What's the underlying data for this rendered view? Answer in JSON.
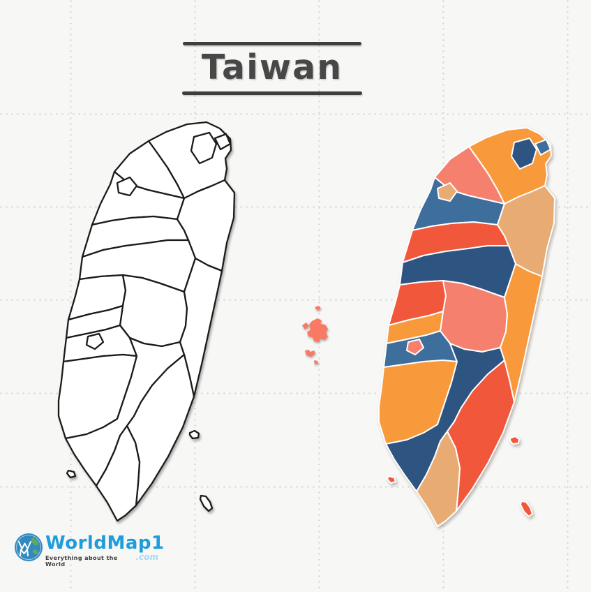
{
  "title": {
    "text": "Taiwan"
  },
  "palette": {
    "orange": "#F8993B",
    "salmon": "#F5806E",
    "red": "#F1573B",
    "navy": "#2E5481",
    "steel": "#3E6E9C",
    "tan": "#E9AB74",
    "coral": "#F87A64",
    "background": "#F7F7F5",
    "grid_dot": "#D6D6D4",
    "ink": "#3E3E3E",
    "outline_stroke": "#1B1B1B",
    "region_divider": "#FFFFFF",
    "brand_blue": "#1E9CDB",
    "brand_light_blue": "#A6D9F3",
    "globe_blue": "#3189C0",
    "globe_green": "#63A861"
  },
  "maps": {
    "outline_label": "taiwan-outline-county-map",
    "colored_label": "taiwan-colored-county-map"
  },
  "regions": [
    {
      "id": "new-taipei",
      "color": "orange"
    },
    {
      "id": "taoyuan",
      "color": "salmon"
    },
    {
      "id": "hsinchu-county",
      "color": "steel"
    },
    {
      "id": "miaoli",
      "color": "red"
    },
    {
      "id": "yilan",
      "color": "tan"
    },
    {
      "id": "taichung",
      "color": "navy"
    },
    {
      "id": "changhua",
      "color": "red"
    },
    {
      "id": "nantou",
      "color": "salmon"
    },
    {
      "id": "yunlin",
      "color": "orange"
    },
    {
      "id": "chiayi-county",
      "color": "steel"
    },
    {
      "id": "tainan",
      "color": "orange"
    },
    {
      "id": "kaohsiung",
      "color": "navy"
    },
    {
      "id": "hualien",
      "color": "orange"
    },
    {
      "id": "taitung",
      "color": "red"
    },
    {
      "id": "pingtung",
      "color": "tan"
    },
    {
      "id": "taipei-city",
      "color": "navy"
    },
    {
      "id": "keelung",
      "color": "steel"
    },
    {
      "id": "hsinchu-city",
      "color": "tan"
    },
    {
      "id": "chiayi-city",
      "color": "salmon"
    },
    {
      "id": "liuqiu",
      "color": "red"
    },
    {
      "id": "green-island",
      "color": "red"
    },
    {
      "id": "orchid-island",
      "color": "red"
    }
  ],
  "penghu": {
    "id": "penghu-islands",
    "color": "coral"
  },
  "logo": {
    "name": "WorldMap1",
    "tld": ".com",
    "tagline": "Everything about the World"
  }
}
